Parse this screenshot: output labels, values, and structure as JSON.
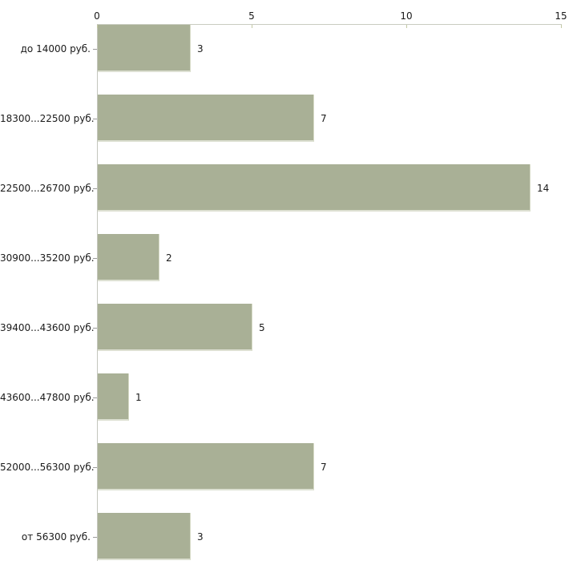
{
  "chart_data": {
    "type": "bar",
    "orientation": "horizontal",
    "title": "",
    "xlabel": "",
    "ylabel": "",
    "categories": [
      "до 14000 руб.",
      "18300...22500 руб.",
      "22500...26700 руб.",
      "30900...35200 руб.",
      "39400...43600 руб.",
      "43600...47800 руб.",
      "52000...56300 руб.",
      "от 56300 руб."
    ],
    "values": [
      3,
      7,
      14,
      2,
      5,
      1,
      7,
      3
    ],
    "value_labels": [
      "3",
      "7",
      "14",
      "2",
      "5",
      "1",
      "7",
      "3"
    ],
    "x_ticks": [
      "0",
      "5",
      "10",
      "15"
    ],
    "xlim": [
      0,
      15
    ],
    "grid": false,
    "legend": null,
    "axis_position": "top",
    "colors": {
      "bar_fill": "#a9b096",
      "bar_edge_light": "#dde0d2",
      "axis_line": "#c9ccc0",
      "x_tick_mark": "#c3c8a4",
      "y_tick_mark": "#9a9a9a",
      "text": "#1a1a1a",
      "background": "#ffffff"
    }
  }
}
